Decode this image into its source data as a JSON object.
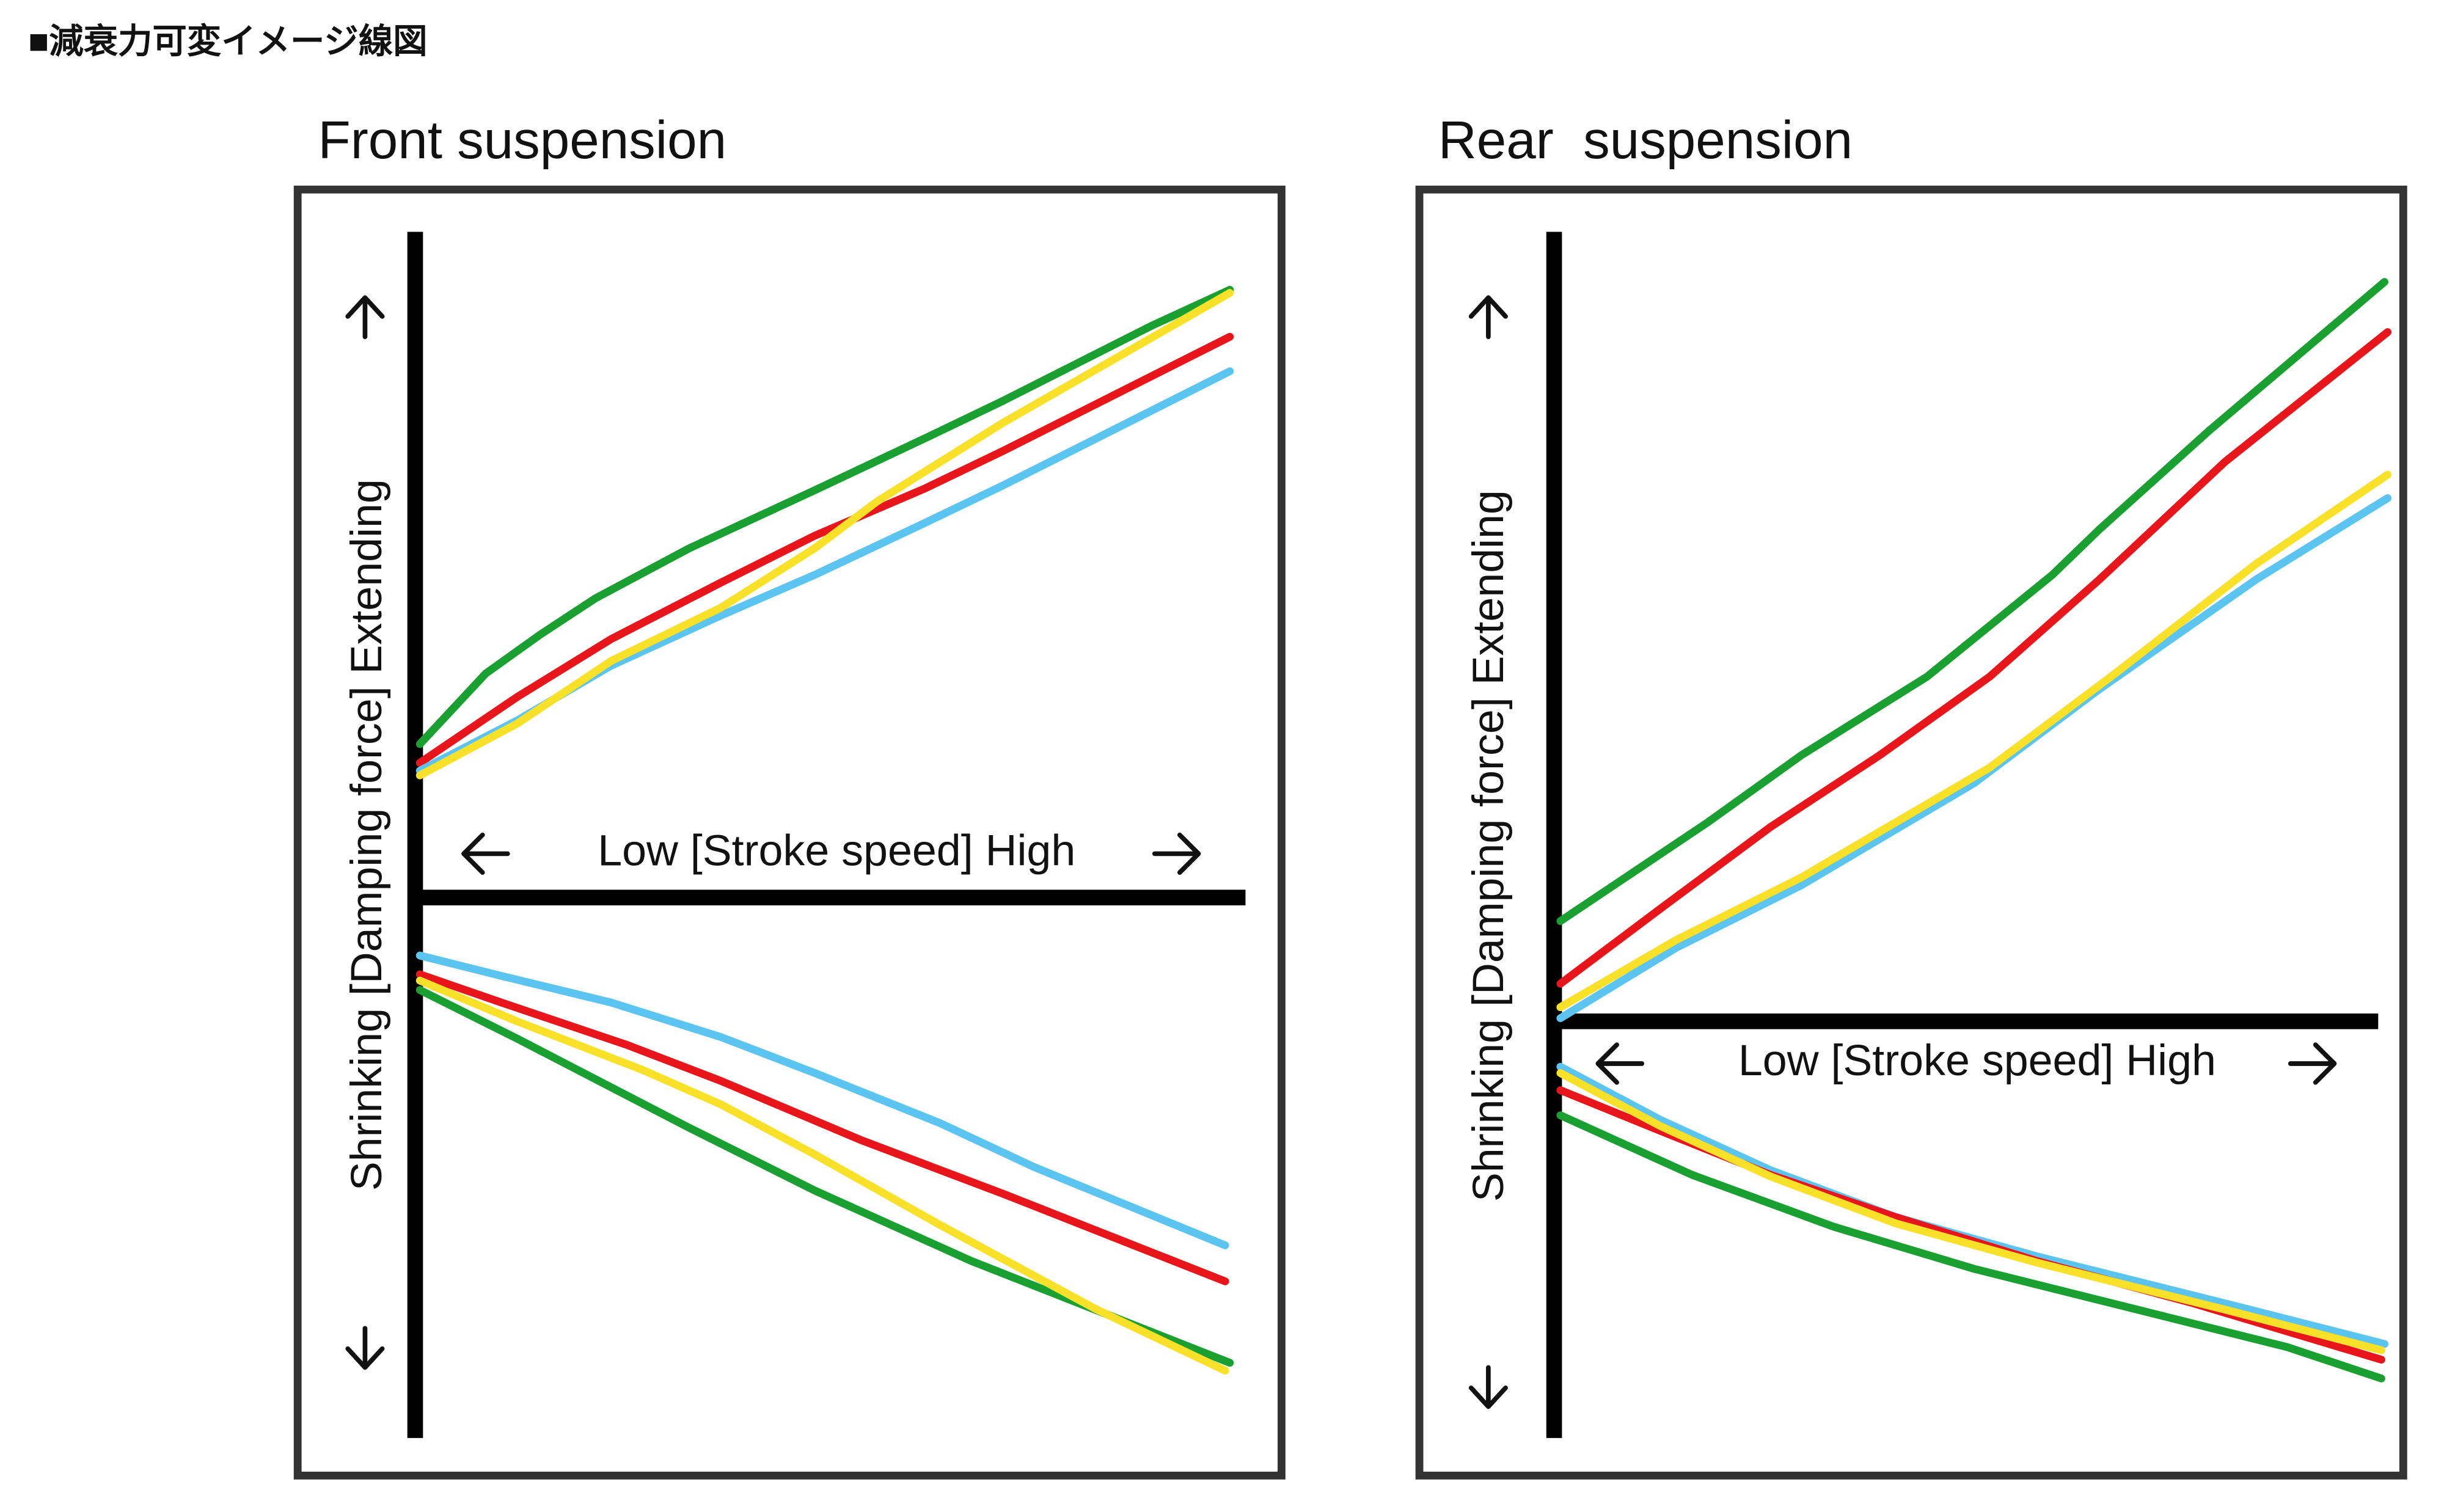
{
  "header": {
    "title": "■減衰力可変イメージ線図"
  },
  "panels": [
    {
      "title": "Front suspension",
      "y_label": "Shrinking  [Damping force]  Extending",
      "x_label": "Low [Stroke speed] High"
    },
    {
      "title": "Rear  suspension",
      "y_label": "Shrinking  [Damping force]  Extending",
      "x_label": "Low [Stroke speed] High"
    }
  ]
}
